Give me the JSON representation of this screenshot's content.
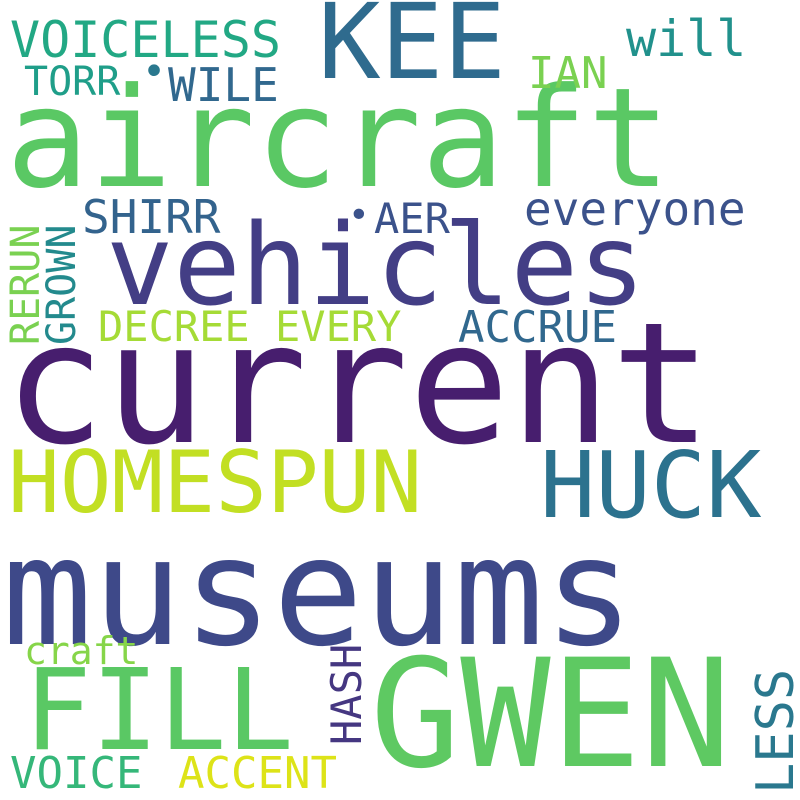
{
  "words": {
    "current": {
      "text": "current",
      "color": "#471e6e"
    },
    "museums": {
      "text": "museums",
      "color": "#3e4989"
    },
    "aircraft": {
      "text": "aircraft",
      "color": "#5ac864"
    },
    "vehicles": {
      "text": "vehicles",
      "color": "#433e85"
    },
    "gwen": {
      "text": "GWEN",
      "color": "#5ec962"
    },
    "fill": {
      "text": "FILL",
      "color": "#5ac864"
    },
    "homespun": {
      "text": "HOMESPUN",
      "color": "#c2df23"
    },
    "huck": {
      "text": "HUCK",
      "color": "#2c728e"
    },
    "kee": {
      "text": "KEE",
      "color": "#2f6b8e"
    },
    "voiceless": {
      "text": "VOICELESS",
      "color": "#22a884"
    },
    "torr": {
      "text": "TORR",
      "color": "#1f9e89"
    },
    "dot1": {
      "text": "•",
      "color": "#2a788e"
    },
    "wile": {
      "text": "WILE",
      "color": "#31688e"
    },
    "ian": {
      "text": "IAN",
      "color": "#7ad151"
    },
    "will": {
      "text": "will",
      "color": "#21918c"
    },
    "everyone": {
      "text": "everyone",
      "color": "#3b528b"
    },
    "shirr": {
      "text": "SHIRR",
      "color": "#33638d"
    },
    "dot2": {
      "text": "•",
      "color": "#3b528b"
    },
    "aer": {
      "text": "AER",
      "color": "#3b528b"
    },
    "decree": {
      "text": "DECREE EVERY",
      "color": "#a5db36"
    },
    "accrue": {
      "text": "ACCRUE",
      "color": "#31688e"
    },
    "craft": {
      "text": "craft",
      "color": "#86d549"
    },
    "voice": {
      "text": "VOICE",
      "color": "#35b779"
    },
    "accent": {
      "text": "ACCENT",
      "color": "#dde318"
    },
    "rerun": {
      "text": "RERUN",
      "color": "#7ad151"
    },
    "grown": {
      "text": "GROWN",
      "color": "#238a8d"
    },
    "hash": {
      "text": "HASH",
      "color": "#453781"
    },
    "less": {
      "text": "LESS",
      "color": "#2a788e"
    }
  }
}
